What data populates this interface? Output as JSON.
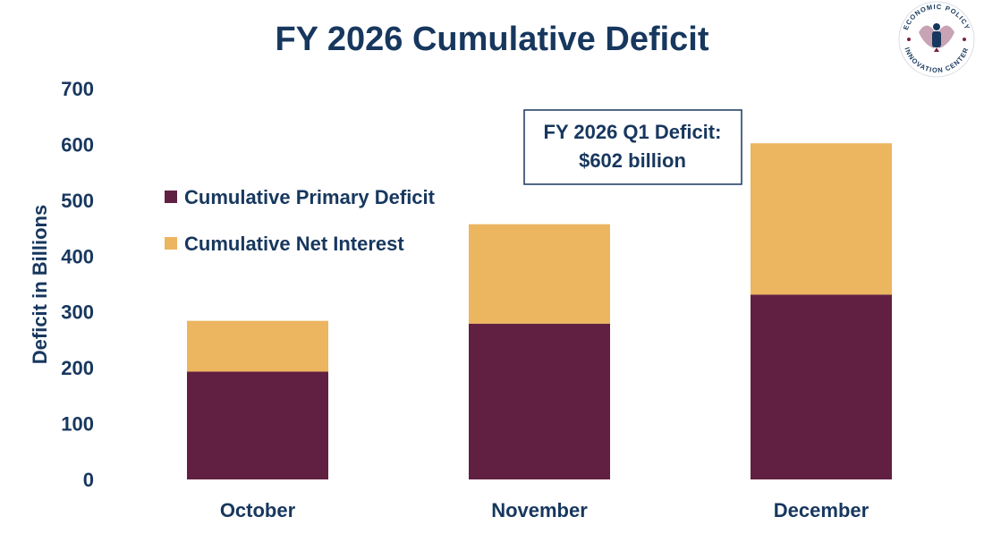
{
  "chart_data": {
    "type": "bar",
    "stacked": true,
    "title": "FY 2026 Cumulative Deficit",
    "ylabel": "Deficit in Billions",
    "xlabel": "",
    "ylim": [
      0,
      700
    ],
    "yticks": [
      0,
      100,
      200,
      300,
      400,
      500,
      600,
      700
    ],
    "grid": false,
    "legend_position": "left",
    "categories": [
      "October",
      "November",
      "December"
    ],
    "series": [
      {
        "name": "Cumulative Primary Deficit",
        "color": "#612041",
        "values": [
          193,
          279,
          331
        ]
      },
      {
        "name": "Cumulative Net Interest",
        "color": "#ecb55f",
        "values": [
          91,
          178,
          271
        ]
      }
    ],
    "annotation": {
      "line1": "FY 2026 Q1 Deficit:",
      "line2": "$602 billion"
    }
  },
  "logo": {
    "text_top": "ECONOMIC POLICY",
    "text_bottom": "INNOVATION CENTER",
    "primary_color": "#17375e",
    "accent_color": "#7a2048"
  }
}
